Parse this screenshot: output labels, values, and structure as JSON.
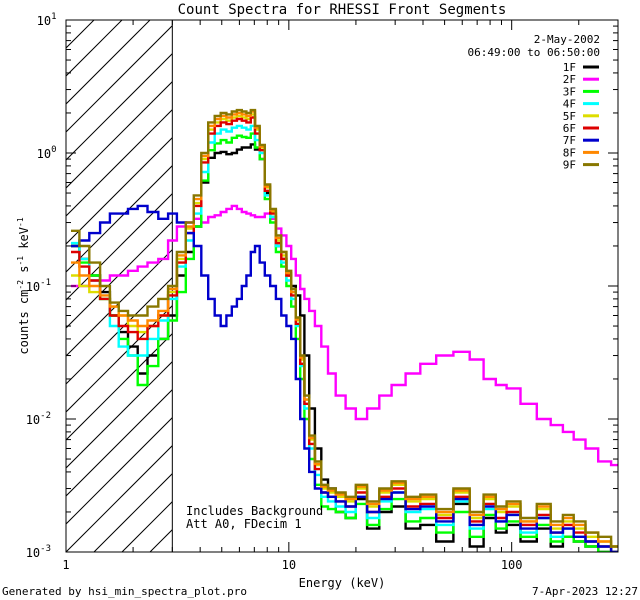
{
  "chart_data": {
    "type": "line",
    "title": "Count Spectra for RHESSI Front Segments",
    "xlabel": "Energy (keV)",
    "ylabel_parts": {
      "a": "counts cm",
      "b": "-2",
      "c": " s",
      "d": "-1",
      "e": " keV",
      "f": "-1"
    },
    "xscale": "log",
    "yscale": "log",
    "xlim": [
      1,
      300
    ],
    "ylim": [
      0.001,
      10
    ],
    "x_ticks": [
      {
        "v": 1,
        "label": "1"
      },
      {
        "v": 10,
        "label": "10"
      },
      {
        "v": 100,
        "label": "100"
      }
    ],
    "y_ticks": [
      {
        "v": 0.001,
        "base": "10",
        "exp": "-3"
      },
      {
        "v": 0.01,
        "base": "10",
        "exp": "-2"
      },
      {
        "v": 0.1,
        "base": "10",
        "exp": "-1"
      },
      {
        "v": 1,
        "base": "10",
        "exp": "0"
      },
      {
        "v": 10,
        "base": "10",
        "exp": "1"
      }
    ],
    "hatched_region_keV": [
      1,
      3
    ],
    "date": "2-May-2002",
    "time_range": "06:49:00 to 06:50:00",
    "annotations": [
      "Includes Background",
      "Att A0, FDecim 1"
    ],
    "series": [
      {
        "name": "1F",
        "color": "#000000",
        "x": [
          1.1,
          1.2,
          1.35,
          1.5,
          1.65,
          1.8,
          2.0,
          2.2,
          2.45,
          2.75,
          3.0,
          3.3,
          3.6,
          3.9,
          4.2,
          4.5,
          4.8,
          5.1,
          5.4,
          5.7,
          6.0,
          6.3,
          6.6,
          6.9,
          7.2,
          7.6,
          8.0,
          8.5,
          9.0,
          9.5,
          10.0,
          10.5,
          11.0,
          11.5,
          12.0,
          12.7,
          13.5,
          14.5,
          15.5,
          17,
          19,
          21,
          24,
          27,
          31,
          36,
          42,
          50,
          60,
          70,
          80,
          90,
          100,
          120,
          140,
          160,
          180,
          200,
          230,
          260,
          300
        ],
        "y": [
          0.2,
          0.16,
          0.12,
          0.09,
          0.06,
          0.045,
          0.035,
          0.022,
          0.03,
          0.04,
          0.06,
          0.12,
          0.18,
          0.28,
          0.6,
          0.92,
          1.0,
          1.02,
          0.98,
          1.0,
          1.06,
          1.1,
          1.1,
          1.16,
          1.06,
          0.9,
          0.5,
          0.33,
          0.2,
          0.16,
          0.12,
          0.1,
          0.085,
          0.06,
          0.03,
          0.012,
          0.006,
          0.0035,
          0.003,
          0.002,
          0.0018,
          0.0025,
          0.0015,
          0.002,
          0.0022,
          0.0015,
          0.0016,
          0.0012,
          0.0023,
          0.0011,
          0.0018,
          0.0014,
          0.0016,
          0.0012,
          0.0015,
          0.0011,
          0.0013,
          0.0012,
          0.0011,
          0.001,
          0.001
        ]
      },
      {
        "name": "2F",
        "color": "#ff00ff",
        "x": [
          1.1,
          1.2,
          1.35,
          1.5,
          1.65,
          1.8,
          2.0,
          2.2,
          2.45,
          2.75,
          3.0,
          3.3,
          3.6,
          3.9,
          4.2,
          4.5,
          4.8,
          5.1,
          5.4,
          5.7,
          6.0,
          6.3,
          6.6,
          6.9,
          7.2,
          7.6,
          8.0,
          8.5,
          9.0,
          9.5,
          10.0,
          10.5,
          11.0,
          11.5,
          12.0,
          12.7,
          13.5,
          14.5,
          15.5,
          17,
          19,
          21,
          24,
          27,
          31,
          36,
          42,
          50,
          60,
          70,
          80,
          90,
          100,
          120,
          140,
          160,
          180,
          200,
          230,
          260,
          300
        ],
        "y": [
          0.1,
          0.1,
          0.11,
          0.11,
          0.12,
          0.12,
          0.13,
          0.14,
          0.15,
          0.16,
          0.22,
          0.28,
          0.3,
          0.32,
          0.3,
          0.33,
          0.34,
          0.36,
          0.38,
          0.4,
          0.38,
          0.36,
          0.35,
          0.34,
          0.33,
          0.33,
          0.35,
          0.32,
          0.27,
          0.24,
          0.2,
          0.16,
          0.12,
          0.095,
          0.08,
          0.065,
          0.05,
          0.035,
          0.022,
          0.015,
          0.012,
          0.01,
          0.012,
          0.015,
          0.018,
          0.022,
          0.026,
          0.03,
          0.032,
          0.028,
          0.02,
          0.018,
          0.017,
          0.013,
          0.01,
          0.009,
          0.008,
          0.007,
          0.006,
          0.0048,
          0.0045
        ]
      },
      {
        "name": "3F",
        "color": "#00ff00",
        "x": [
          1.1,
          1.2,
          1.35,
          1.5,
          1.65,
          1.8,
          2.0,
          2.2,
          2.45,
          2.75,
          3.0,
          3.3,
          3.6,
          3.9,
          4.2,
          4.5,
          4.8,
          5.1,
          5.4,
          5.7,
          6.0,
          6.3,
          6.6,
          6.9,
          7.2,
          7.6,
          8.0,
          8.5,
          9.0,
          9.5,
          10.0,
          10.5,
          11.0,
          11.5,
          12.0,
          12.7,
          13.5,
          14.5,
          15.5,
          17,
          19,
          21,
          24,
          27,
          31,
          36,
          42,
          50,
          60,
          70,
          80,
          90,
          100,
          120,
          140,
          160,
          180,
          200,
          230,
          260,
          300
        ],
        "y": [
          0.2,
          0.15,
          0.12,
          0.08,
          0.06,
          0.04,
          0.03,
          0.018,
          0.025,
          0.04,
          0.055,
          0.09,
          0.16,
          0.28,
          0.62,
          1.05,
          1.18,
          1.25,
          1.2,
          1.3,
          1.35,
          1.32,
          1.3,
          1.4,
          1.1,
          0.9,
          0.45,
          0.3,
          0.18,
          0.14,
          0.1,
          0.07,
          0.04,
          0.02,
          0.01,
          0.005,
          0.0032,
          0.0022,
          0.0021,
          0.002,
          0.0018,
          0.0023,
          0.0016,
          0.0021,
          0.0025,
          0.0017,
          0.0018,
          0.0014,
          0.002,
          0.0013,
          0.0019,
          0.0015,
          0.0017,
          0.0013,
          0.0016,
          0.0012,
          0.0013,
          0.0012,
          0.0011,
          0.001,
          0.001
        ]
      },
      {
        "name": "4F",
        "color": "#00ffff",
        "x": [
          1.1,
          1.2,
          1.35,
          1.5,
          1.65,
          1.8,
          2.0,
          2.2,
          2.45,
          2.75,
          3.0,
          3.3,
          3.6,
          3.9,
          4.2,
          4.5,
          4.8,
          5.1,
          5.4,
          5.7,
          6.0,
          6.3,
          6.6,
          6.9,
          7.2,
          7.6,
          8.0,
          8.5,
          9.0,
          9.5,
          10.0,
          10.5,
          11.0,
          11.5,
          12.0,
          12.7,
          13.5,
          14.5,
          15.5,
          17,
          19,
          21,
          24,
          27,
          31,
          36,
          42,
          50,
          60,
          70,
          80,
          90,
          100,
          120,
          140,
          160,
          180,
          200,
          230,
          260,
          300
        ],
        "y": [
          0.21,
          0.16,
          0.11,
          0.08,
          0.05,
          0.035,
          0.03,
          0.03,
          0.04,
          0.055,
          0.08,
          0.14,
          0.22,
          0.35,
          0.72,
          1.2,
          1.4,
          1.5,
          1.45,
          1.55,
          1.6,
          1.55,
          1.5,
          1.6,
          1.25,
          1.0,
          0.48,
          0.33,
          0.2,
          0.15,
          0.11,
          0.08,
          0.05,
          0.025,
          0.012,
          0.006,
          0.0038,
          0.0026,
          0.0024,
          0.0022,
          0.002,
          0.0026,
          0.0018,
          0.0024,
          0.0028,
          0.002,
          0.0021,
          0.0016,
          0.0024,
          0.0015,
          0.0021,
          0.0017,
          0.0019,
          0.0014,
          0.0018,
          0.0013,
          0.0015,
          0.0013,
          0.0012,
          0.0011,
          0.001
        ]
      },
      {
        "name": "5F",
        "color": "#dddd00",
        "x": [
          1.1,
          1.2,
          1.35,
          1.5,
          1.65,
          1.8,
          2.0,
          2.2,
          2.45,
          2.75,
          3.0,
          3.3,
          3.6,
          3.9,
          4.2,
          4.5,
          4.8,
          5.1,
          5.4,
          5.7,
          6.0,
          6.3,
          6.6,
          6.9,
          7.2,
          7.6,
          8.0,
          8.5,
          9.0,
          9.5,
          10.0,
          10.5,
          11.0,
          11.5,
          12.0,
          12.7,
          13.5,
          14.5,
          15.5,
          17,
          19,
          21,
          24,
          27,
          31,
          36,
          42,
          50,
          60,
          70,
          80,
          90,
          100,
          120,
          140,
          160,
          180,
          200,
          230,
          260,
          300
        ],
        "y": [
          0.12,
          0.1,
          0.09,
          0.08,
          0.07,
          0.06,
          0.05,
          0.045,
          0.05,
          0.06,
          0.09,
          0.16,
          0.27,
          0.42,
          0.9,
          1.5,
          1.7,
          1.8,
          1.75,
          1.85,
          1.9,
          1.85,
          1.8,
          1.95,
          1.5,
          1.1,
          0.55,
          0.36,
          0.22,
          0.17,
          0.12,
          0.09,
          0.055,
          0.028,
          0.014,
          0.007,
          0.0045,
          0.003,
          0.0028,
          0.0026,
          0.0024,
          0.003,
          0.0022,
          0.0028,
          0.0032,
          0.0024,
          0.0025,
          0.0019,
          0.0028,
          0.0018,
          0.0025,
          0.002,
          0.0022,
          0.0017,
          0.0021,
          0.0015,
          0.0017,
          0.0015,
          0.0013,
          0.0012,
          0.0011
        ]
      },
      {
        "name": "6F",
        "color": "#dd0000",
        "x": [
          1.1,
          1.2,
          1.35,
          1.5,
          1.65,
          1.8,
          2.0,
          2.2,
          2.45,
          2.75,
          3.0,
          3.3,
          3.6,
          3.9,
          4.2,
          4.5,
          4.8,
          5.1,
          5.4,
          5.7,
          6.0,
          6.3,
          6.6,
          6.9,
          7.2,
          7.6,
          8.0,
          8.5,
          9.0,
          9.5,
          10.0,
          10.5,
          11.0,
          11.5,
          12.0,
          12.7,
          13.5,
          14.5,
          15.5,
          17,
          19,
          21,
          24,
          27,
          31,
          36,
          42,
          50,
          60,
          70,
          80,
          90,
          100,
          120,
          140,
          160,
          180,
          200,
          230,
          260,
          300
        ],
        "y": [
          0.18,
          0.14,
          0.11,
          0.08,
          0.06,
          0.05,
          0.045,
          0.04,
          0.05,
          0.06,
          0.085,
          0.15,
          0.25,
          0.4,
          0.85,
          1.4,
          1.6,
          1.7,
          1.65,
          1.75,
          1.8,
          1.75,
          1.7,
          1.85,
          1.4,
          1.05,
          0.52,
          0.35,
          0.21,
          0.16,
          0.12,
          0.085,
          0.052,
          0.026,
          0.013,
          0.0065,
          0.0042,
          0.0028,
          0.0026,
          0.0024,
          0.0022,
          0.0028,
          0.002,
          0.0026,
          0.003,
          0.0022,
          0.0023,
          0.0018,
          0.0026,
          0.0017,
          0.0023,
          0.0018,
          0.002,
          0.0016,
          0.0019,
          0.0014,
          0.0016,
          0.0014,
          0.0012,
          0.0011,
          0.001
        ]
      },
      {
        "name": "7F",
        "color": "#0000cc",
        "x": [
          1.1,
          1.2,
          1.35,
          1.5,
          1.65,
          1.8,
          2.0,
          2.2,
          2.45,
          2.75,
          3.0,
          3.3,
          3.6,
          3.9,
          4.2,
          4.5,
          4.8,
          5.1,
          5.4,
          5.7,
          6.0,
          6.3,
          6.6,
          6.9,
          7.2,
          7.6,
          8.0,
          8.5,
          9.0,
          9.5,
          10.0,
          10.5,
          11.0,
          11.5,
          12.0,
          12.7,
          13.5,
          14.5,
          15.5,
          17,
          19,
          21,
          24,
          27,
          31,
          36,
          42,
          50,
          60,
          70,
          80,
          90,
          100,
          120,
          140,
          160,
          180,
          200,
          230,
          260,
          300
        ],
        "y": [
          0.2,
          0.22,
          0.25,
          0.3,
          0.35,
          0.35,
          0.38,
          0.4,
          0.36,
          0.32,
          0.35,
          0.3,
          0.25,
          0.2,
          0.12,
          0.08,
          0.06,
          0.05,
          0.06,
          0.07,
          0.08,
          0.1,
          0.12,
          0.18,
          0.2,
          0.15,
          0.12,
          0.1,
          0.08,
          0.06,
          0.05,
          0.04,
          0.02,
          0.01,
          0.006,
          0.004,
          0.003,
          0.0028,
          0.0026,
          0.0024,
          0.0022,
          0.0026,
          0.002,
          0.0025,
          0.0028,
          0.0021,
          0.0022,
          0.0017,
          0.0025,
          0.0016,
          0.0022,
          0.0017,
          0.0019,
          0.0015,
          0.0018,
          0.0014,
          0.0015,
          0.0013,
          0.0012,
          0.0011,
          0.001
        ]
      },
      {
        "name": "8F",
        "color": "#ff8800",
        "x": [
          1.1,
          1.2,
          1.35,
          1.5,
          1.65,
          1.8,
          2.0,
          2.2,
          2.45,
          2.75,
          3.0,
          3.3,
          3.6,
          3.9,
          4.2,
          4.5,
          4.8,
          5.1,
          5.4,
          5.7,
          6.0,
          6.3,
          6.6,
          6.9,
          7.2,
          7.6,
          8.0,
          8.5,
          9.0,
          9.5,
          10.0,
          10.5,
          11.0,
          11.5,
          12.0,
          12.7,
          13.5,
          14.5,
          15.5,
          17,
          19,
          21,
          24,
          27,
          31,
          36,
          42,
          50,
          60,
          70,
          80,
          90,
          100,
          120,
          140,
          160,
          180,
          200,
          230,
          260,
          300
        ],
        "y": [
          0.15,
          0.12,
          0.1,
          0.085,
          0.07,
          0.06,
          0.055,
          0.05,
          0.055,
          0.065,
          0.095,
          0.17,
          0.28,
          0.45,
          0.95,
          1.6,
          1.8,
          1.9,
          1.85,
          1.95,
          2.0,
          1.95,
          1.9,
          2.05,
          1.55,
          1.12,
          0.56,
          0.37,
          0.23,
          0.18,
          0.125,
          0.09,
          0.056,
          0.029,
          0.014,
          0.0072,
          0.0046,
          0.0031,
          0.0029,
          0.0027,
          0.0025,
          0.0031,
          0.0023,
          0.0029,
          0.0033,
          0.0025,
          0.0026,
          0.002,
          0.0029,
          0.0019,
          0.0026,
          0.0021,
          0.0023,
          0.0017,
          0.0022,
          0.0016,
          0.0018,
          0.0016,
          0.0014,
          0.0012,
          0.0011
        ]
      },
      {
        "name": "9F",
        "color": "#887700",
        "x": [
          1.1,
          1.2,
          1.35,
          1.5,
          1.65,
          1.8,
          2.0,
          2.2,
          2.45,
          2.75,
          3.0,
          3.3,
          3.6,
          3.9,
          4.2,
          4.5,
          4.8,
          5.1,
          5.4,
          5.7,
          6.0,
          6.3,
          6.6,
          6.9,
          7.2,
          7.6,
          8.0,
          8.5,
          9.0,
          9.5,
          10.0,
          10.5,
          11.0,
          11.5,
          12.0,
          12.7,
          13.5,
          14.5,
          15.5,
          17,
          19,
          21,
          24,
          27,
          31,
          36,
          42,
          50,
          60,
          70,
          80,
          90,
          100,
          120,
          140,
          160,
          180,
          200,
          230,
          260,
          300
        ],
        "y": [
          0.26,
          0.2,
          0.15,
          0.1,
          0.075,
          0.065,
          0.06,
          0.06,
          0.07,
          0.08,
          0.1,
          0.18,
          0.3,
          0.48,
          1.0,
          1.7,
          1.9,
          2.0,
          1.95,
          2.05,
          2.1,
          2.05,
          2.0,
          2.1,
          1.6,
          1.15,
          0.58,
          0.38,
          0.24,
          0.18,
          0.13,
          0.095,
          0.058,
          0.03,
          0.015,
          0.0075,
          0.0048,
          0.0032,
          0.003,
          0.0028,
          0.0026,
          0.0032,
          0.0024,
          0.003,
          0.0034,
          0.0026,
          0.0027,
          0.0021,
          0.003,
          0.002,
          0.0027,
          0.0022,
          0.0024,
          0.0018,
          0.0023,
          0.0017,
          0.0019,
          0.0017,
          0.0014,
          0.0013,
          0.0011
        ]
      }
    ]
  },
  "footer": {
    "generated_by": "Generated by hsi_min_spectra_plot.pro",
    "timestamp": "7-Apr-2023 12:27"
  }
}
